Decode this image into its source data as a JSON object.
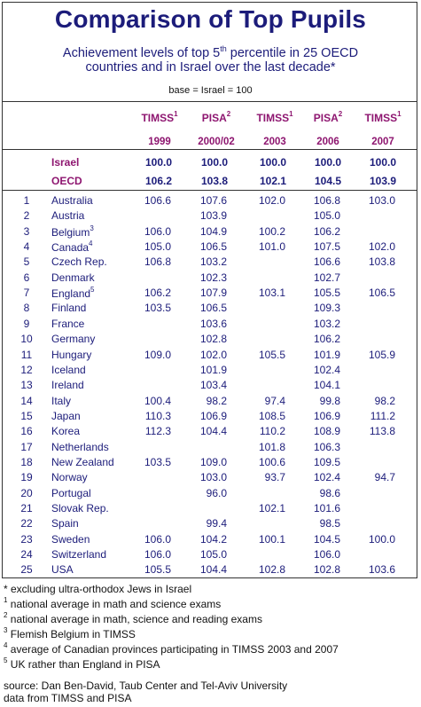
{
  "title": "Comparison of Top Pupils",
  "subtitle_line1_pre": "Achievement levels of top 5",
  "subtitle_line1_sup": "th",
  "subtitle_line1_post": " percentile in 25 OECD",
  "subtitle_line2": "countries and in Israel over the last decade*",
  "base_note": "base = Israel = 100",
  "columns": [
    {
      "name": "TIMSS",
      "sup": "1",
      "year": "1999"
    },
    {
      "name": "PISA",
      "sup": "2",
      "year": "2000/02"
    },
    {
      "name": "TIMSS",
      "sup": "1",
      "year": "2003"
    },
    {
      "name": "PISA",
      "sup": "2",
      "year": "2006"
    },
    {
      "name": "TIMSS",
      "sup": "1",
      "year": "2007"
    }
  ],
  "summary": [
    {
      "label": "Israel",
      "values": [
        "100.0",
        "100.0",
        "100.0",
        "100.0",
        "100.0"
      ]
    },
    {
      "label": "OECD",
      "values": [
        "106.2",
        "103.8",
        "102.1",
        "104.5",
        "103.9"
      ]
    }
  ],
  "rows": [
    {
      "num": "1",
      "country": "Australia",
      "sup": "",
      "values": [
        "106.6",
        "107.6",
        "102.0",
        "106.8",
        "103.0"
      ]
    },
    {
      "num": "2",
      "country": "Austria",
      "sup": "",
      "values": [
        "",
        "103.9",
        "",
        "105.0",
        ""
      ]
    },
    {
      "num": "3",
      "country": "Belgium",
      "sup": "3",
      "values": [
        "106.0",
        "104.9",
        "100.2",
        "106.2",
        ""
      ]
    },
    {
      "num": "4",
      "country": "Canada",
      "sup": "4",
      "values": [
        "105.0",
        "106.5",
        "101.0",
        "107.5",
        "102.0"
      ]
    },
    {
      "num": "5",
      "country": "Czech Rep.",
      "sup": "",
      "values": [
        "106.8",
        "103.2",
        "",
        "106.6",
        "103.8"
      ]
    },
    {
      "num": "6",
      "country": "Denmark",
      "sup": "",
      "values": [
        "",
        "102.3",
        "",
        "102.7",
        ""
      ]
    },
    {
      "num": "7",
      "country": "England",
      "sup": "5",
      "values": [
        "106.2",
        "107.9",
        "103.1",
        "105.5",
        "106.5"
      ]
    },
    {
      "num": "8",
      "country": "Finland",
      "sup": "",
      "values": [
        "103.5",
        "106.5",
        "",
        "109.3",
        ""
      ]
    },
    {
      "num": "9",
      "country": "France",
      "sup": "",
      "values": [
        "",
        "103.6",
        "",
        "103.2",
        ""
      ]
    },
    {
      "num": "10",
      "country": "Germany",
      "sup": "",
      "values": [
        "",
        "102.8",
        "",
        "106.2",
        ""
      ]
    },
    {
      "num": "11",
      "country": "Hungary",
      "sup": "",
      "values": [
        "109.0",
        "102.0",
        "105.5",
        "101.9",
        "105.9"
      ]
    },
    {
      "num": "12",
      "country": "Iceland",
      "sup": "",
      "values": [
        "",
        "101.9",
        "",
        "102.4",
        ""
      ]
    },
    {
      "num": "13",
      "country": "Ireland",
      "sup": "",
      "values": [
        "",
        "103.4",
        "",
        "104.1",
        ""
      ]
    },
    {
      "num": "14",
      "country": "Italy",
      "sup": "",
      "values": [
        "100.4",
        "98.2",
        "97.4",
        "99.8",
        "98.2"
      ]
    },
    {
      "num": "15",
      "country": "Japan",
      "sup": "",
      "values": [
        "110.3",
        "106.9",
        "108.5",
        "106.9",
        "111.2"
      ]
    },
    {
      "num": "16",
      "country": "Korea",
      "sup": "",
      "values": [
        "112.3",
        "104.4",
        "110.2",
        "108.9",
        "113.8"
      ]
    },
    {
      "num": "17",
      "country": "Netherlands",
      "sup": "",
      "values": [
        "",
        "",
        "101.8",
        "106.3",
        ""
      ]
    },
    {
      "num": "18",
      "country": "New Zealand",
      "sup": "",
      "values": [
        "103.5",
        "109.0",
        "100.6",
        "109.5",
        ""
      ]
    },
    {
      "num": "19",
      "country": "Norway",
      "sup": "",
      "values": [
        "",
        "103.0",
        "93.7",
        "102.4",
        "94.7"
      ]
    },
    {
      "num": "20",
      "country": "Portugal",
      "sup": "",
      "values": [
        "",
        "96.0",
        "",
        "98.6",
        ""
      ]
    },
    {
      "num": "21",
      "country": "Slovak Rep.",
      "sup": "",
      "values": [
        "",
        "",
        "102.1",
        "101.6",
        ""
      ]
    },
    {
      "num": "22",
      "country": "Spain",
      "sup": "",
      "values": [
        "",
        "99.4",
        "",
        "98.5",
        ""
      ]
    },
    {
      "num": "23",
      "country": "Sweden",
      "sup": "",
      "values": [
        "106.0",
        "104.2",
        "100.1",
        "104.5",
        "100.0"
      ]
    },
    {
      "num": "24",
      "country": "Switzerland",
      "sup": "",
      "values": [
        "106.0",
        "105.0",
        "",
        "106.0",
        ""
      ]
    },
    {
      "num": "25",
      "country": "USA",
      "sup": "",
      "values": [
        "105.5",
        "104.4",
        "102.8",
        "102.8",
        "103.6"
      ]
    }
  ],
  "notes": [
    {
      "sup": "",
      "text": "* excluding ultra-orthodox Jews in Israel"
    },
    {
      "sup": "1",
      "text": " national average in math and science exams"
    },
    {
      "sup": "2",
      "text": " national average in math, science and reading exams"
    },
    {
      "sup": "3",
      "text": " Flemish Belgium in TIMSS"
    },
    {
      "sup": "4",
      "text": " average of Canadian provinces participating in TIMSS 2003 and 2007"
    },
    {
      "sup": "5",
      "text": " UK rather than England in PISA"
    }
  ],
  "source_line1": "source: Dan Ben-David, Taub Center and Tel-Aviv University",
  "source_line2": "data from TIMSS and PISA",
  "colors": {
    "title": "#1c1c7a",
    "header": "#8e1670",
    "values": "#1c1c7a"
  }
}
